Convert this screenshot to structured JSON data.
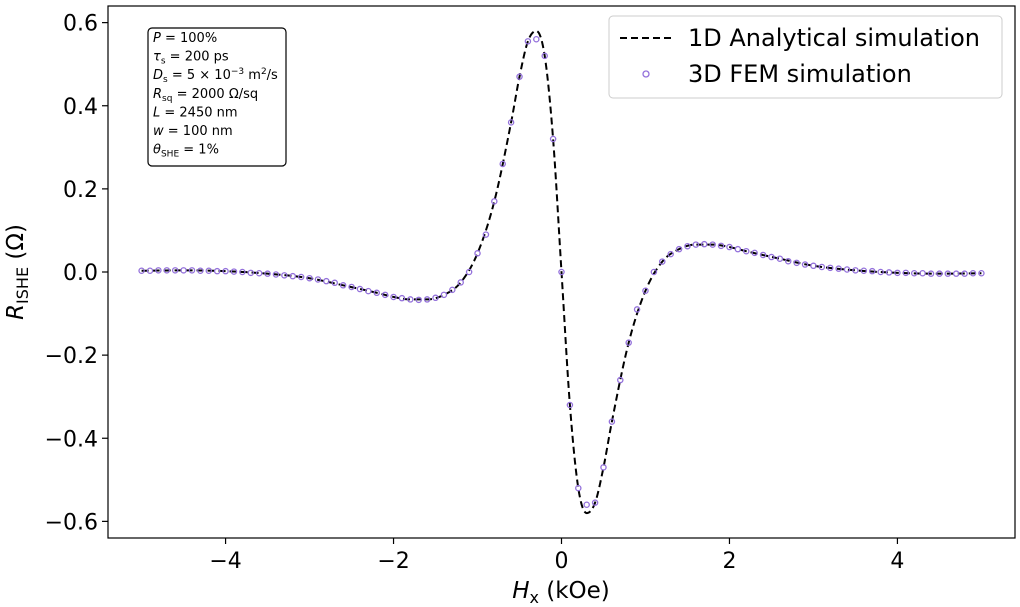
{
  "chart_data": {
    "type": "line",
    "xlabel": "H_x (kOe)",
    "ylabel": "R_ISHE (Ω)",
    "xlabel_parts": [
      "H",
      "x",
      " (kOe)"
    ],
    "ylabel_parts": [
      "R",
      "ISHE",
      " (Ω)"
    ],
    "xlim": [
      -5.4,
      5.4
    ],
    "ylim": [
      -0.64,
      0.64
    ],
    "xticks": [
      -4,
      -2,
      0,
      2,
      4
    ],
    "xtick_labels": [
      "−4",
      "−2",
      "0",
      "2",
      "4"
    ],
    "yticks": [
      -0.6,
      -0.4,
      -0.2,
      0.0,
      0.2,
      0.4,
      0.6
    ],
    "ytick_labels": [
      "−0.6",
      "−0.4",
      "−0.2",
      "0.0",
      "0.2",
      "0.4",
      "0.6"
    ],
    "grid": false,
    "legend_position": "upper right",
    "series": [
      {
        "name": "1D Analytical simulation",
        "style": "dashed-line",
        "color": "#000000",
        "x": [
          -5.0,
          -4.5,
          -4.0,
          -3.5,
          -3.0,
          -2.6,
          -2.2,
          -2.0,
          -1.8,
          -1.6,
          -1.4,
          -1.2,
          -1.0,
          -0.8,
          -0.6,
          -0.5,
          -0.4,
          -0.3,
          -0.2,
          -0.1,
          0.0,
          0.1,
          0.2,
          0.3,
          0.4,
          0.5,
          0.6,
          0.8,
          1.0,
          1.2,
          1.4,
          1.6,
          1.8,
          2.0,
          2.2,
          2.6,
          3.0,
          3.5,
          4.0,
          4.5,
          5.0
        ],
        "y": [
          0.003,
          0.004,
          0.002,
          -0.004,
          -0.015,
          -0.032,
          -0.05,
          -0.06,
          -0.066,
          -0.066,
          -0.055,
          -0.025,
          0.045,
          0.17,
          0.36,
          0.47,
          0.555,
          0.58,
          0.52,
          0.32,
          0.0,
          -0.32,
          -0.52,
          -0.58,
          -0.555,
          -0.47,
          -0.36,
          -0.17,
          -0.045,
          0.025,
          0.055,
          0.066,
          0.066,
          0.06,
          0.05,
          0.032,
          0.015,
          0.004,
          -0.002,
          -0.004,
          -0.003
        ]
      },
      {
        "name": "3D FEM simulation",
        "style": "open-circles",
        "color": "#9370DB",
        "x": [
          -5.0,
          -4.9,
          -4.8,
          -4.7,
          -4.6,
          -4.5,
          -4.4,
          -4.3,
          -4.2,
          -4.1,
          -4.0,
          -3.9,
          -3.8,
          -3.7,
          -3.6,
          -3.5,
          -3.4,
          -3.3,
          -3.2,
          -3.1,
          -3.0,
          -2.9,
          -2.8,
          -2.7,
          -2.6,
          -2.5,
          -2.4,
          -2.3,
          -2.2,
          -2.1,
          -2.0,
          -1.9,
          -1.8,
          -1.7,
          -1.6,
          -1.5,
          -1.4,
          -1.3,
          -1.2,
          -1.1,
          -1.0,
          -0.9,
          -0.8,
          -0.7,
          -0.6,
          -0.5,
          -0.4,
          -0.3,
          -0.2,
          -0.1,
          0.0,
          0.1,
          0.2,
          0.3,
          0.4,
          0.5,
          0.6,
          0.7,
          0.8,
          0.9,
          1.0,
          1.1,
          1.2,
          1.3,
          1.4,
          1.5,
          1.6,
          1.7,
          1.8,
          1.9,
          2.0,
          2.1,
          2.2,
          2.3,
          2.4,
          2.5,
          2.6,
          2.7,
          2.8,
          2.9,
          3.0,
          3.1,
          3.2,
          3.3,
          3.4,
          3.5,
          3.6,
          3.7,
          3.8,
          3.9,
          4.0,
          4.1,
          4.2,
          4.3,
          4.4,
          4.5,
          4.6,
          4.7,
          4.8,
          4.9,
          5.0
        ],
        "y": [
          0.003,
          0.003,
          0.004,
          0.004,
          0.004,
          0.004,
          0.004,
          0.003,
          0.003,
          0.002,
          0.002,
          0.001,
          0.0,
          -0.002,
          -0.003,
          -0.004,
          -0.006,
          -0.008,
          -0.01,
          -0.012,
          -0.015,
          -0.018,
          -0.022,
          -0.026,
          -0.032,
          -0.036,
          -0.041,
          -0.046,
          -0.05,
          -0.055,
          -0.06,
          -0.063,
          -0.066,
          -0.067,
          -0.066,
          -0.062,
          -0.055,
          -0.043,
          -0.025,
          0.0,
          0.045,
          0.09,
          0.17,
          0.26,
          0.36,
          0.47,
          0.555,
          0.56,
          0.52,
          0.32,
          0.0,
          -0.32,
          -0.52,
          -0.56,
          -0.555,
          -0.47,
          -0.36,
          -0.26,
          -0.17,
          -0.09,
          -0.045,
          0.0,
          0.025,
          0.043,
          0.055,
          0.062,
          0.066,
          0.067,
          0.066,
          0.063,
          0.06,
          0.055,
          0.05,
          0.046,
          0.041,
          0.036,
          0.032,
          0.026,
          0.022,
          0.018,
          0.015,
          0.012,
          0.01,
          0.008,
          0.006,
          0.004,
          0.003,
          0.002,
          0.0,
          -0.001,
          -0.002,
          -0.002,
          -0.003,
          -0.003,
          -0.004,
          -0.004,
          -0.004,
          -0.004,
          -0.004,
          -0.003,
          -0.003
        ]
      }
    ],
    "annotation": {
      "lines": [
        {
          "sym": "P",
          "sub": "",
          "sup": "",
          "rest": " = 100%"
        },
        {
          "sym": "τ",
          "sub": "s",
          "sup": "",
          "rest": " = 200 ps"
        },
        {
          "sym": "D",
          "sub": "s",
          "sup": "",
          "rest": " = 5 × 10",
          "exp": "−3",
          "tail": " m",
          "tail_sup": "2",
          "tail_end": "/s"
        },
        {
          "sym": "R",
          "sub": "sq",
          "sup": "",
          "rest": " = 2000 Ω/sq"
        },
        {
          "sym": "L",
          "sub": "",
          "sup": "",
          "rest": " = 2450 nm"
        },
        {
          "sym": "w",
          "sub": "",
          "sup": "",
          "rest": " = 100 nm"
        },
        {
          "sym": "θ",
          "sub": "SHE",
          "sup": "",
          "rest": " = 1%"
        }
      ]
    }
  }
}
